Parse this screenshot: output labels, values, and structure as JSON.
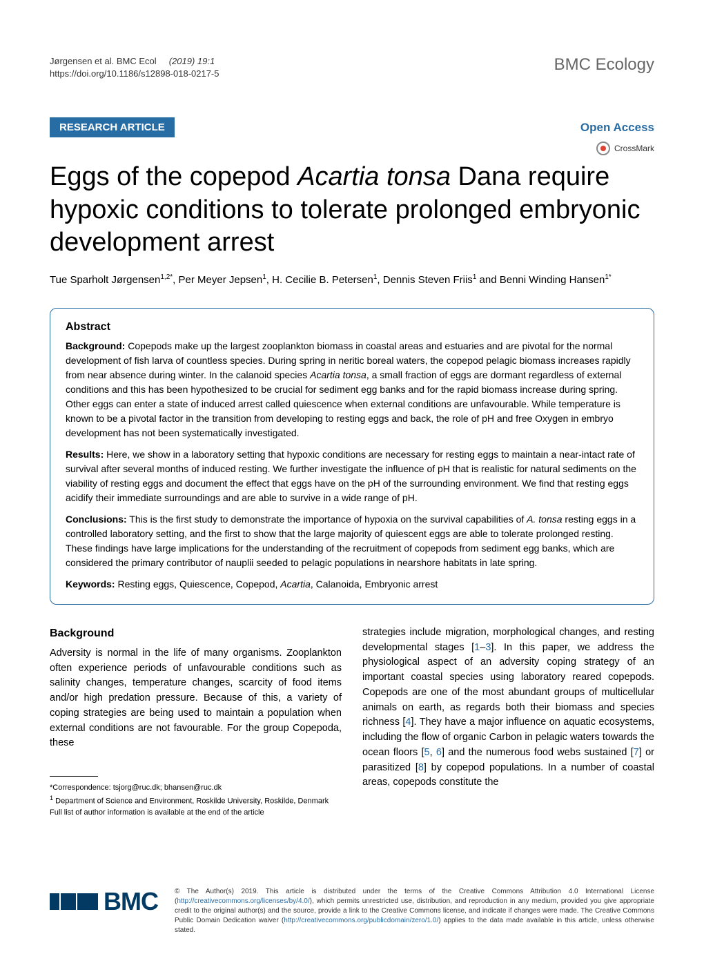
{
  "meta": {
    "citation": "Jørgensen et al. BMC Ecol",
    "year_volume_issue": "(2019) 19:1",
    "doi": "https://doi.org/10.1186/s12898-018-0217-5",
    "journal": "BMC Ecology"
  },
  "bar": {
    "article_type": "RESEARCH ARTICLE",
    "open_access": "Open Access",
    "crossmark": "CrossMark"
  },
  "title": {
    "part1": "Eggs of the copepod ",
    "italic": "Acartia tonsa",
    "part2": " Dana require hypoxic conditions to tolerate prolonged embryonic development arrest"
  },
  "authors": "Tue Sparholt Jørgensen1,2*, Per Meyer Jepsen1, H. Cecilie B. Petersen1, Dennis Steven Friis1 and Benni Winding Hansen1*",
  "abstract": {
    "heading": "Abstract",
    "background_label": "Background:",
    "background_text": " Copepods make up the largest zooplankton biomass in coastal areas and estuaries and are pivotal for the normal development of fish larva of countless species. During spring in neritic boreal waters, the copepod pelagic biomass increases rapidly from near absence during winter. In the calanoid species Acartia tonsa, a small fraction of eggs are dormant regardless of external conditions and this has been hypothesized to be crucial for sediment egg banks and for the rapid biomass increase during spring. Other eggs can enter a state of induced arrest called quiescence when external conditions are unfavourable. While temperature is known to be a pivotal factor in the transition from developing to resting eggs and back, the role of pH and free Oxygen in embryo development has not been systematically investigated.",
    "results_label": "Results:",
    "results_text": " Here, we show in a laboratory setting that hypoxic conditions are necessary for resting eggs to maintain a near-intact rate of survival after several months of induced resting. We further investigate the influence of pH that is realistic for natural sediments on the viability of resting eggs and document the effect that eggs have on the pH of the surrounding environment. We find that resting eggs acidify their immediate surroundings and are able to survive in a wide range of pH.",
    "conclusions_label": "Conclusions:",
    "conclusions_text": " This is the first study to demonstrate the importance of hypoxia on the survival capabilities of A. tonsa resting eggs in a controlled laboratory setting, and the first to show that the large majority of quiescent eggs are able to tolerate prolonged resting. These findings have large implications for the understanding of the recruitment of copepods from sediment egg banks, which are considered the primary contributor of nauplii seeded to pelagic populations in nearshore habitats in late spring.",
    "keywords_label": "Keywords:",
    "keywords_text": " Resting eggs, Quiescence, Copepod, Acartia, Calanoida, Embryonic arrest"
  },
  "body": {
    "left_heading": "Background",
    "left_text": "Adversity is normal in the life of many organisms. Zooplankton often experience periods of unfavourable conditions such as salinity changes, temperature changes, scarcity of food items and/or high predation pressure. Because of this, a variety of coping strategies are being used to maintain a population when external conditions are not favourable. For the group Copepoda, these",
    "right_text_1": "strategies include migration, morphological changes, and resting developmental stages [",
    "ref1": "1",
    "dash": "–",
    "ref3": "3",
    "right_text_2": "]. In this paper, we address the physiological aspect of an adversity coping strategy of an important coastal species using laboratory reared copepods. Copepods are one of the most abundant groups of multicellular animals on earth, as regards both their biomass and species richness [",
    "ref4": "4",
    "right_text_3": "]. They have a major influence on aquatic ecosystems, including the flow of organic Carbon in pelagic waters towards the ocean floors [",
    "ref5": "5",
    "comma": ", ",
    "ref6": "6",
    "right_text_4": "] and the numerous food webs sustained [",
    "ref7": "7",
    "right_text_5": "] or parasitized [",
    "ref8": "8",
    "right_text_6": "] by copepod populations. In a number of coastal areas, copepods constitute the"
  },
  "footnotes": {
    "correspondence": "*Correspondence:  tsjorg@ruc.dk; bhansen@ruc.dk",
    "affiliation": "1 Department of Science and Environment, Roskilde University, Roskilde, Denmark",
    "full_list": "Full list of author information is available at the end of the article"
  },
  "footer": {
    "bmc": "BMC",
    "license_1": "© The Author(s) 2019. This article is distributed under the terms of the Creative Commons Attribution 4.0 International License (",
    "license_url1": "http://creativecommons.org/licenses/by/4.0/",
    "license_2": "), which permits unrestricted use, distribution, and reproduction in any medium, provided you give appropriate credit to the original author(s) and the source, provide a link to the Creative Commons license, and indicate if changes were made. The Creative Commons Public Domain Dedication waiver (",
    "license_url2": "http://creativecommons.org/publicdomain/zero/1.0/",
    "license_3": ") applies to the data made available in this article, unless otherwise stated."
  },
  "colors": {
    "brand_blue": "#286ca4",
    "bmc_navy": "#033a63",
    "text": "#000000",
    "gray": "#666666"
  }
}
